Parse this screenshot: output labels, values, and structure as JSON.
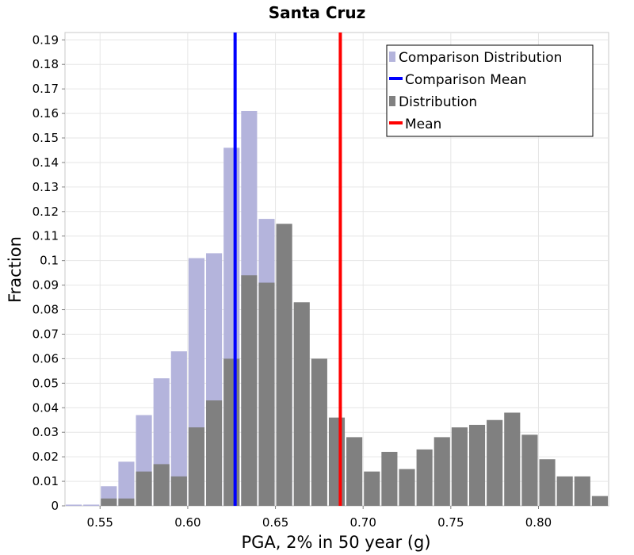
{
  "chart_data": {
    "type": "bar",
    "title": "Santa Cruz",
    "xlabel": "PGA, 2% in 50 year (g)",
    "ylabel": "Fraction",
    "xlim": [
      0.53,
      0.84
    ],
    "ylim": [
      0,
      0.193
    ],
    "bin_width": 0.01,
    "x_ticks": [
      "0.55",
      "0.60",
      "0.65",
      "0.70",
      "0.75",
      "0.80"
    ],
    "y_ticks": [
      "0",
      "0.01",
      "0.02",
      "0.03",
      "0.04",
      "0.05",
      "0.06",
      "0.07",
      "0.08",
      "0.09",
      "0.1",
      "0.11",
      "0.12",
      "0.13",
      "0.14",
      "0.15",
      "0.16",
      "0.17",
      "0.18",
      "0.19"
    ],
    "legend": [
      "Comparison Distribution",
      "Comparison Mean",
      "Distribution",
      "Mean"
    ],
    "colors": {
      "comparison": "#b4b4dc",
      "distribution": "#808080",
      "comparison_mean": "#0000ff",
      "mean": "#ff0000"
    },
    "comparison_mean": 0.627,
    "mean": 0.687,
    "series": [
      {
        "name": "Comparison Distribution",
        "bin_centers": [
          0.535,
          0.545,
          0.555,
          0.565,
          0.575,
          0.585,
          0.595,
          0.605,
          0.615,
          0.625,
          0.635,
          0.645,
          0.655
        ],
        "values": [
          0.0005,
          0.0005,
          0.008,
          0.018,
          0.037,
          0.052,
          0.063,
          0.101,
          0.103,
          0.146,
          0.161,
          0.117,
          0.1
        ]
      },
      {
        "name": "Distribution",
        "bin_centers": [
          0.535,
          0.545,
          0.555,
          0.565,
          0.575,
          0.585,
          0.595,
          0.605,
          0.615,
          0.625,
          0.635,
          0.645,
          0.655,
          0.665,
          0.675,
          0.685,
          0.695,
          0.705,
          0.715,
          0.725,
          0.735,
          0.745,
          0.755,
          0.765,
          0.775,
          0.785,
          0.795,
          0.805,
          0.815,
          0.825,
          0.835
        ],
        "values": [
          0.0,
          0.0,
          0.003,
          0.003,
          0.014,
          0.017,
          0.012,
          0.032,
          0.043,
          0.06,
          0.094,
          0.091,
          0.115,
          0.083,
          0.06,
          0.036,
          0.028,
          0.014,
          0.022,
          0.015,
          0.023,
          0.028,
          0.032,
          0.033,
          0.035,
          0.038,
          0.029,
          0.019,
          0.012,
          0.012,
          0.004
        ]
      }
    ]
  }
}
